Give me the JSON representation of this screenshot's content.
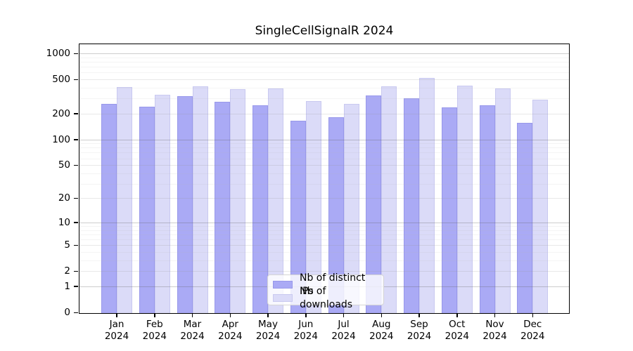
{
  "title": "SingleCellSignalR 2024",
  "legend": {
    "items": [
      {
        "label": "Nb of distinct IPs"
      },
      {
        "label": "Nb of downloads"
      }
    ]
  },
  "colors": {
    "distinct_ips": "#aaaaf5",
    "distinct_ips_edge": "#9898ea",
    "downloads": "#dbdbf8",
    "downloads_edge": "#c9c9f0",
    "frame": "#000000",
    "grid_pow10": "rgba(100,100,100,0.32)",
    "grid_major": "rgba(150,150,150,0.22)",
    "grid_minor": "rgba(185,185,185,0.16)",
    "legend_background": "rgba(255,255,255,0.8)",
    "legend_border": "#d5d5d5"
  },
  "chart_data": {
    "type": "bar",
    "title": "SingleCellSignalR 2024",
    "categories": [
      "Jan 2024",
      "Feb 2024",
      "Mar 2024",
      "Apr 2024",
      "May 2024",
      "Jun 2024",
      "Jul 2024",
      "Aug 2024",
      "Sep 2024",
      "Oct 2024",
      "Nov 2024",
      "Dec 2024"
    ],
    "series": [
      {
        "name": "Nb of distinct IPs",
        "values": [
          260,
          240,
          320,
          277,
          252,
          165,
          180,
          328,
          300,
          237,
          250,
          155
        ]
      },
      {
        "name": "Nb of downloads",
        "values": [
          405,
          330,
          415,
          385,
          395,
          280,
          260,
          412,
          520,
          425,
          390,
          290
        ]
      }
    ],
    "y_axis": {
      "scale": "log1p",
      "ticks": [
        0,
        1,
        2,
        5,
        10,
        20,
        50,
        100,
        200,
        500,
        1000
      ],
      "range": [
        0,
        1300
      ],
      "grid": true
    },
    "x_axis": {
      "grid": false
    },
    "legend_entries": [
      "Nb of distinct IPs",
      "Nb of downloads"
    ],
    "legend_position": "inside-lower-center"
  }
}
